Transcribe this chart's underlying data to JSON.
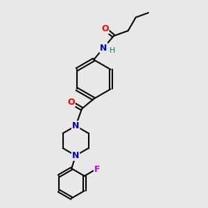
{
  "background_color": "#e8e8e8",
  "bond_color": "#000000",
  "atom_colors": {
    "N": "#0000cc",
    "O": "#ff0000",
    "F": "#cc00cc",
    "H": "#008080",
    "C": "#000000"
  },
  "figsize": [
    3.0,
    3.0
  ],
  "dpi": 100,
  "xlim": [
    0,
    10
  ],
  "ylim": [
    0,
    10
  ]
}
